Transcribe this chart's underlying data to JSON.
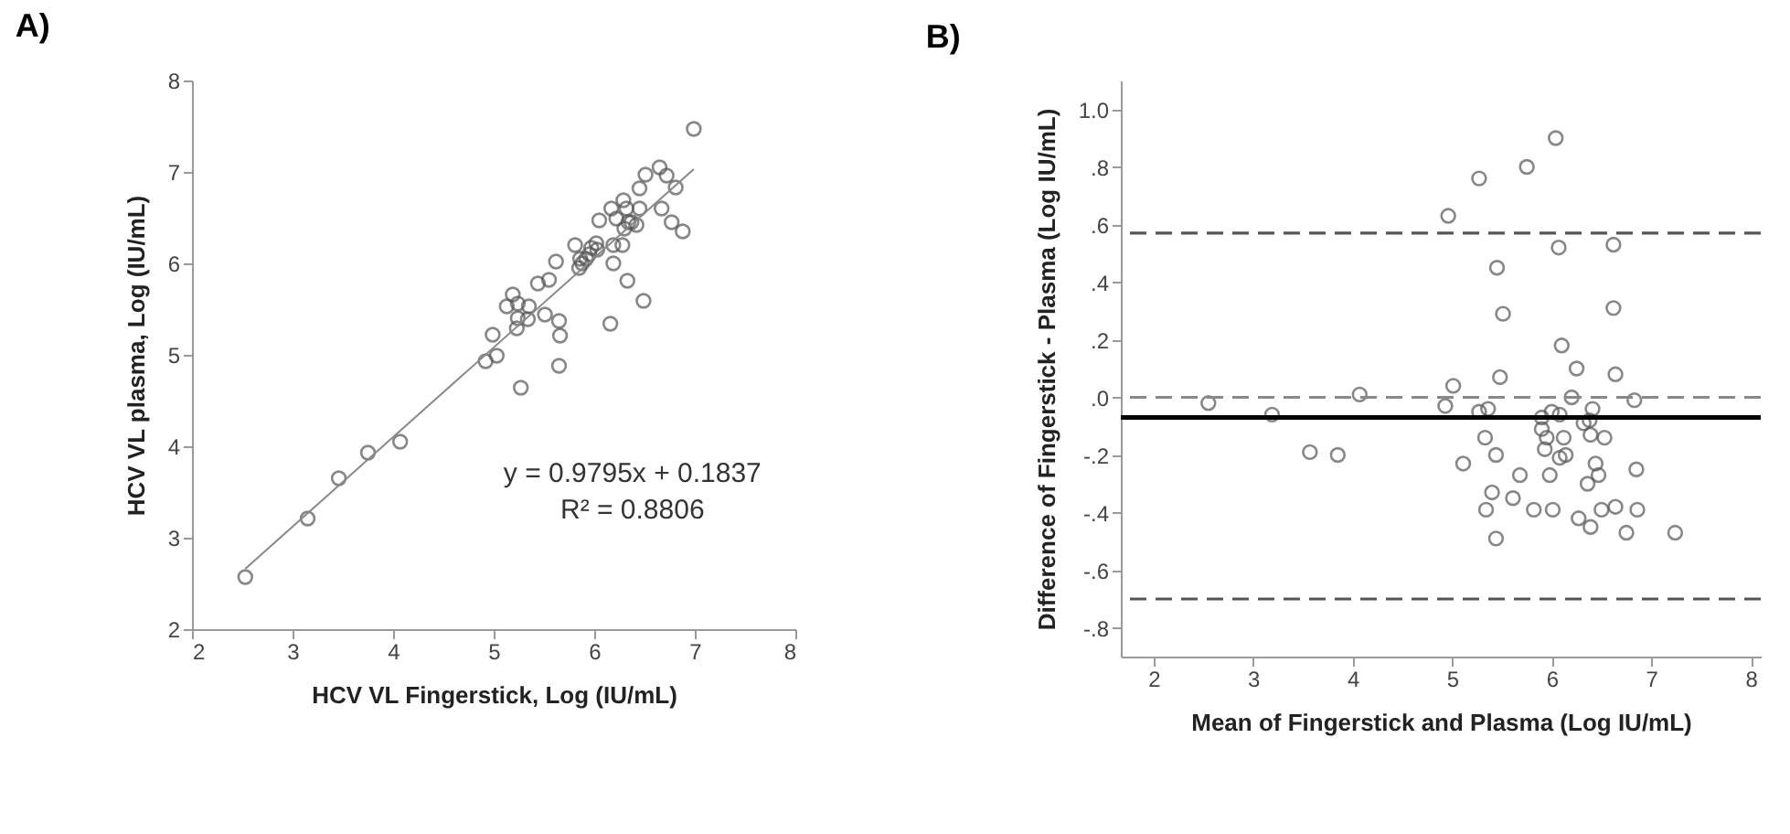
{
  "chart_data": [
    {
      "type": "scatter",
      "title": "A)",
      "xlabel": "HCV VL Fingerstick, Log (IU/mL)",
      "ylabel": "HCV VL plasma, Log (IU/mL)",
      "xlim": [
        2,
        8
      ],
      "ylim": [
        2,
        8
      ],
      "xticks": [
        2,
        3,
        4,
        5,
        6,
        7,
        8
      ],
      "yticks": [
        2,
        3,
        4,
        5,
        6,
        7,
        8
      ],
      "grid": false,
      "annotations": [
        "y = 0.9795x + 0.1837",
        "R² = 0.8806"
      ],
      "series": [
        {
          "type": "scatter",
          "marker": "circle",
          "color": "#555555",
          "x": [
            2.53,
            3.15,
            3.46,
            3.75,
            4.07,
            4.92,
            5.03,
            4.99,
            5.27,
            5.65,
            5.66,
            5.65,
            5.51,
            5.23,
            5.24,
            5.34,
            5.35,
            5.13,
            5.19,
            5.24,
            5.44,
            5.55,
            5.62,
            5.81,
            5.85,
            5.86,
            5.88,
            5.92,
            5.95,
            5.97,
            6.02,
            6.03,
            6.05,
            6.17,
            6.19,
            6.16,
            6.19,
            6.22,
            6.28,
            6.29,
            6.3,
            6.32,
            6.33,
            6.34,
            6.37,
            6.42,
            6.45,
            6.45,
            6.49,
            6.51,
            6.65,
            6.67,
            6.72,
            6.77,
            6.81,
            6.88,
            6.99
          ],
          "values": [
            2.57,
            3.21,
            3.65,
            3.93,
            4.05,
            4.93,
            4.99,
            5.22,
            4.64,
            4.88,
            5.21,
            5.37,
            5.44,
            5.29,
            5.4,
            5.39,
            5.53,
            5.53,
            5.66,
            5.56,
            5.78,
            5.82,
            6.02,
            6.2,
            5.95,
            6.05,
            6.0,
            6.05,
            6.1,
            6.17,
            6.22,
            6.15,
            6.47,
            6.6,
            6.0,
            5.34,
            6.2,
            6.49,
            6.2,
            6.69,
            6.38,
            6.6,
            5.81,
            6.45,
            6.45,
            6.42,
            6.82,
            6.6,
            5.59,
            6.97,
            7.05,
            6.6,
            6.96,
            6.45,
            6.83,
            6.35,
            7.47
          ]
        },
        {
          "type": "line",
          "color": "#888888",
          "x": [
            2.53,
            6.99
          ],
          "values": [
            2.66,
            7.03
          ]
        }
      ]
    },
    {
      "type": "scatter",
      "title": "B)",
      "xlabel": "Mean of Fingerstick and Plasma (Log IU/mL)",
      "ylabel": "Difference of Fingerstick - Plasma (Log IU/mL)",
      "xlim": [
        1.67,
        8.1
      ],
      "ylim": [
        -0.9,
        1.1
      ],
      "xticks": [
        2,
        3,
        4,
        5,
        6,
        7,
        8
      ],
      "yticks": [
        {
          "value": -0.8,
          "label": "-.8"
        },
        {
          "value": -0.6,
          "label": "-.6"
        },
        {
          "value": -0.4,
          "label": "-.4"
        },
        {
          "value": -0.2,
          "label": "-.2"
        },
        {
          "value": 0,
          "label": ".0"
        },
        {
          "value": 0.2,
          "label": ".2"
        },
        {
          "value": 0.4,
          "label": ".4"
        },
        {
          "value": 0.6,
          "label": ".6"
        },
        {
          "value": 0.8,
          "label": ".8"
        },
        {
          "value": 1.0,
          "label": "1.0"
        }
      ],
      "grid": false,
      "marker": "circle",
      "ref_lines": [
        {
          "axis": "y",
          "value": 0.57,
          "line_style": "dashed",
          "color": "#555555"
        },
        {
          "axis": "y",
          "value": 0,
          "line_style": "dashed",
          "color": "#888888"
        },
        {
          "axis": "y",
          "value": -0.07,
          "line_style": "solid",
          "color": "#000000"
        },
        {
          "axis": "y",
          "value": -0.7,
          "line_style": "dashed",
          "color": "#555555"
        }
      ],
      "series": [
        {
          "type": "scatter",
          "color": "#555555",
          "x": [
            2.55,
            3.19,
            3.57,
            3.85,
            4.07,
            4.93,
            5.01,
            4.96,
            5.27,
            5.75,
            6.04,
            5.45,
            5.51,
            5.48,
            6.07,
            6.62,
            6.62,
            6.1,
            6.25,
            6.64,
            6.2,
            6.83,
            5.27,
            5.36,
            6.41,
            6.0,
            5.9,
            6.08,
            6.32,
            6.38,
            5.9,
            5.33,
            5.95,
            6.12,
            6.39,
            6.53,
            5.93,
            6.08,
            6.14,
            5.44,
            5.11,
            6.44,
            6.47,
            5.68,
            5.98,
            6.85,
            5.4,
            6.36,
            5.61,
            5.34,
            5.82,
            6.01,
            6.5,
            6.64,
            6.86,
            6.27,
            6.39,
            5.44,
            6.75,
            7.24
          ],
          "values": [
            -0.02,
            -0.06,
            -0.19,
            -0.2,
            0.01,
            -0.03,
            0.04,
            0.63,
            0.76,
            0.8,
            0.9,
            0.45,
            0.29,
            0.07,
            0.52,
            0.53,
            0.31,
            0.18,
            0.1,
            0.08,
            0.0,
            -0.01,
            -0.05,
            -0.04,
            -0.04,
            -0.05,
            -0.07,
            -0.06,
            -0.09,
            -0.08,
            -0.11,
            -0.14,
            -0.14,
            -0.14,
            -0.13,
            -0.14,
            -0.18,
            -0.21,
            -0.2,
            -0.2,
            -0.23,
            -0.23,
            -0.27,
            -0.27,
            -0.27,
            -0.25,
            -0.33,
            -0.3,
            -0.35,
            -0.39,
            -0.39,
            -0.39,
            -0.39,
            -0.38,
            -0.39,
            -0.42,
            -0.45,
            -0.49,
            -0.47,
            -0.47
          ]
        }
      ]
    }
  ]
}
